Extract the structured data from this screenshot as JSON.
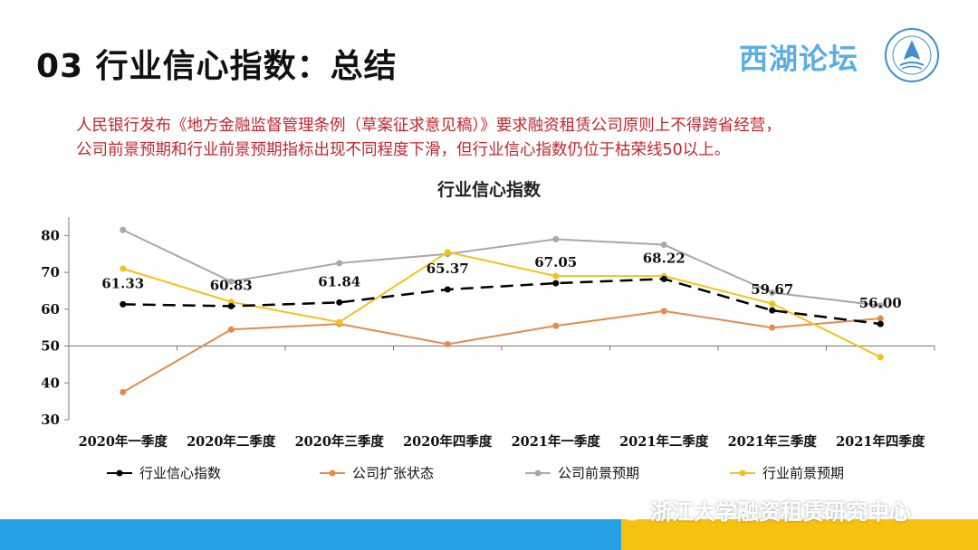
{
  "header": {
    "title": "03 行业信心指数：总结",
    "brand": "西湖论坛"
  },
  "summary": {
    "line1": "人民银行发布《地方金融监督管理条例（草案征求意见稿）》要求融资租赁公司原则上不得跨省经营，",
    "line2": "公司前景预期和行业前景预期指标出现不同程度下滑，但行业信心指数仍位于枯荣线50以上。"
  },
  "chart_data": {
    "type": "line",
    "title": "行业信心指数",
    "categories": [
      "2020年一季度",
      "2020年二季度",
      "2020年三季度",
      "2020年四季度",
      "2021年一季度",
      "2021年二季度",
      "2021年三季度",
      "2021年四季度"
    ],
    "ylim": [
      30,
      85
    ],
    "yticks": [
      30,
      40,
      50,
      60,
      70,
      80
    ],
    "series": [
      {
        "name": "行业信心指数",
        "color": "#000000",
        "dashed": true,
        "values": [
          61.33,
          60.83,
          61.84,
          65.37,
          67.05,
          68.22,
          59.67,
          56.0
        ],
        "labels": [
          "61.33",
          "60.83",
          "61.84",
          "65.37",
          "67.05",
          "68.22",
          "59.67",
          "56.00"
        ]
      },
      {
        "name": "公司扩张状态",
        "color": "#e58a4b",
        "dashed": false,
        "values": [
          37.5,
          54.5,
          56.0,
          50.5,
          55.5,
          59.5,
          55.0,
          57.5
        ]
      },
      {
        "name": "公司前景预期",
        "color": "#a8a8a8",
        "dashed": false,
        "values": [
          81.5,
          67.5,
          72.5,
          75.0,
          79.0,
          77.5,
          64.5,
          61.0
        ]
      },
      {
        "name": "行业前景预期",
        "color": "#f2c21b",
        "dashed": false,
        "values": [
          71.0,
          62.0,
          56.5,
          75.5,
          69.0,
          69.0,
          61.5,
          47.0
        ]
      }
    ],
    "grid": false,
    "legend_position": "bottom"
  },
  "footer": {
    "watermark": "浙江大学融资租赁研究中心",
    "colors": {
      "left_band": "#26a0e4",
      "right_band": "#f6c20f"
    }
  }
}
